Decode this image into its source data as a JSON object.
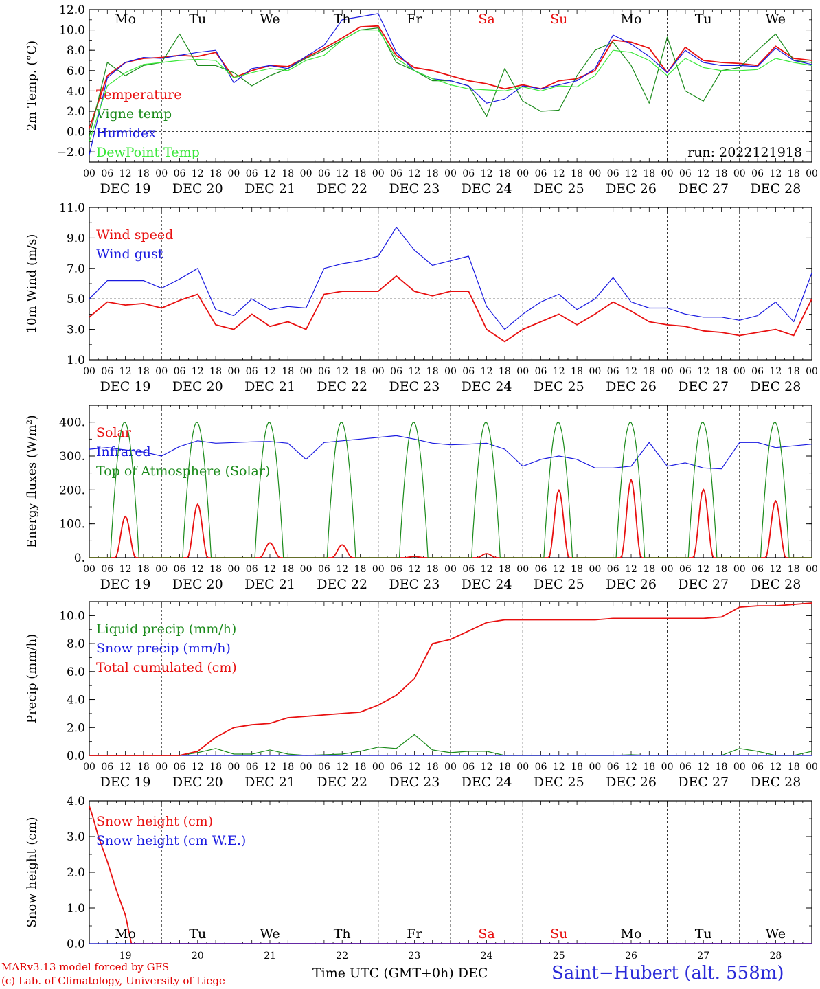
{
  "run_label": "run: 2022121918",
  "footer": {
    "credit_line1": "MARv3.13 model forced by GFS",
    "credit_line2": "(c) Lab. of Climatology, University of Liege",
    "x_axis_title": "Time UTC (GMT+0h) DEC",
    "station": "Saint−Hubert (alt. 558m)"
  },
  "days": [
    {
      "weekday": "Mo",
      "date": "DEC 19",
      "num": "19",
      "weekend": false
    },
    {
      "weekday": "Tu",
      "date": "DEC 20",
      "num": "20",
      "weekend": false
    },
    {
      "weekday": "We",
      "date": "DEC 21",
      "num": "21",
      "weekend": false
    },
    {
      "weekday": "Th",
      "date": "DEC 22",
      "num": "22",
      "weekend": false
    },
    {
      "weekday": "Fr",
      "date": "DEC 23",
      "num": "23",
      "weekend": false
    },
    {
      "weekday": "Sa",
      "date": "DEC 24",
      "num": "24",
      "weekend": true
    },
    {
      "weekday": "Su",
      "date": "DEC 25",
      "num": "25",
      "weekend": true
    },
    {
      "weekday": "Mo",
      "date": "DEC 26",
      "num": "26",
      "weekend": false
    },
    {
      "weekday": "Tu",
      "date": "DEC 27",
      "num": "27",
      "weekend": false
    },
    {
      "weekday": "We",
      "date": "DEC 28",
      "num": "28",
      "weekend": false
    }
  ],
  "hour_ticks": [
    "00",
    "06",
    "12",
    "18"
  ],
  "colors": {
    "red": "#e81010",
    "green": "#1a8a1a",
    "blue": "#1a1ae0",
    "lightgreen": "#3ae83a",
    "weekend": "#e81010"
  },
  "chart_data": [
    {
      "type": "line",
      "ylabel": "2m Temp. (°C)",
      "ylim": [
        -3,
        12
      ],
      "yticks": [
        "12.0",
        "10.0",
        "8.0",
        "6.0",
        "4.0",
        "2.0",
        "0.0",
        "−2.0"
      ],
      "ytick_values": [
        12,
        10,
        8,
        6,
        4,
        2,
        0,
        -2
      ],
      "reference_line": 0,
      "x_unit": "hours from DEC 19 00 UTC",
      "x": [
        0,
        6,
        12,
        18,
        24,
        30,
        36,
        42,
        48,
        54,
        60,
        66,
        72,
        78,
        84,
        90,
        96,
        102,
        108,
        114,
        120,
        126,
        132,
        138,
        144,
        150,
        156,
        162,
        168,
        174,
        180,
        186,
        192,
        198,
        204,
        210,
        216,
        222,
        228,
        234,
        240
      ],
      "series": [
        {
          "name": "Temperature",
          "color": "red",
          "values": [
            0.3,
            5.5,
            6.8,
            7.2,
            7.3,
            7.5,
            7.4,
            7.8,
            5.3,
            6.0,
            6.5,
            6.4,
            7.3,
            8.2,
            9.2,
            10.3,
            10.4,
            7.5,
            6.3,
            6.0,
            5.5,
            5.0,
            4.7,
            4.2,
            4.6,
            4.2,
            5.0,
            5.2,
            6.0,
            9.0,
            8.8,
            8.2,
            5.8,
            8.3,
            7.0,
            6.8,
            6.7,
            6.5,
            8.4,
            7.2,
            7.0
          ]
        },
        {
          "name": "Vigne temp",
          "color": "green",
          "values": [
            -0.5,
            6.8,
            5.5,
            6.5,
            6.8,
            9.6,
            6.5,
            6.5,
            5.8,
            4.5,
            5.5,
            6.2,
            7.2,
            8.0,
            9.0,
            10.0,
            10.2,
            6.8,
            6.0,
            5.0,
            5.0,
            4.5,
            1.5,
            6.2,
            3.0,
            2.0,
            2.1,
            5.5,
            8.0,
            8.8,
            6.5,
            2.8,
            9.3,
            4.0,
            3.0,
            6.0,
            6.3,
            8.0,
            9.6,
            7.0,
            6.8
          ]
        },
        {
          "name": "Humidex",
          "color": "blue",
          "values": [
            -2.3,
            5.3,
            6.8,
            7.3,
            7.2,
            7.5,
            7.8,
            8.0,
            4.8,
            6.2,
            6.5,
            6.2,
            7.4,
            8.5,
            11.0,
            11.3,
            11.6,
            7.8,
            6.0,
            5.2,
            5.0,
            4.5,
            2.8,
            3.2,
            4.5,
            4.2,
            4.6,
            5.0,
            6.2,
            9.5,
            8.6,
            7.4,
            5.8,
            8.0,
            6.8,
            6.5,
            6.5,
            6.4,
            8.2,
            7.0,
            6.6
          ]
        },
        {
          "name": "DewPoint Temp",
          "color": "lightgreen",
          "values": [
            -1.0,
            4.5,
            5.8,
            6.6,
            6.8,
            7.0,
            7.1,
            7.0,
            5.3,
            5.8,
            6.2,
            6.0,
            7.0,
            7.5,
            9.0,
            10.0,
            10.0,
            7.2,
            6.0,
            5.2,
            4.6,
            4.2,
            4.1,
            4.0,
            4.4,
            4.0,
            4.5,
            4.4,
            5.5,
            8.0,
            7.8,
            7.0,
            5.5,
            7.2,
            6.3,
            6.0,
            6.0,
            6.1,
            7.2,
            6.8,
            6.5
          ]
        }
      ]
    },
    {
      "type": "line",
      "ylabel": "10m Wind (m/s)",
      "ylim": [
        1,
        11
      ],
      "yticks": [
        "11.0",
        "9.0",
        "7.0",
        "5.0",
        "3.0",
        "1.0"
      ],
      "ytick_values": [
        11,
        9,
        7,
        5,
        3,
        1
      ],
      "reference_line": 5,
      "x_unit": "hours from DEC 19 00 UTC",
      "x": [
        0,
        6,
        12,
        18,
        24,
        30,
        36,
        42,
        48,
        54,
        60,
        66,
        72,
        78,
        84,
        90,
        96,
        102,
        108,
        114,
        120,
        126,
        132,
        138,
        144,
        150,
        156,
        162,
        168,
        174,
        180,
        186,
        192,
        198,
        204,
        210,
        216,
        222,
        228,
        234,
        240
      ],
      "series": [
        {
          "name": "Wind speed",
          "color": "red",
          "values": [
            3.8,
            4.8,
            4.6,
            4.7,
            4.4,
            4.9,
            5.3,
            3.3,
            3.0,
            4.0,
            3.2,
            3.5,
            3.0,
            5.3,
            5.5,
            5.5,
            5.5,
            6.5,
            5.5,
            5.2,
            5.5,
            5.5,
            3.0,
            2.2,
            3.0,
            3.5,
            4.0,
            3.3,
            4.0,
            4.8,
            4.2,
            3.5,
            3.3,
            3.2,
            2.9,
            2.8,
            2.6,
            2.8,
            3.0,
            2.6,
            5.0
          ]
        },
        {
          "name": "Wind gust",
          "color": "blue",
          "values": [
            5.0,
            6.2,
            6.2,
            6.2,
            5.7,
            6.3,
            7.0,
            4.3,
            3.9,
            5.0,
            4.3,
            4.5,
            4.4,
            7.0,
            7.3,
            7.5,
            7.8,
            9.7,
            8.2,
            7.2,
            7.5,
            7.8,
            4.5,
            3.0,
            4.0,
            4.8,
            5.3,
            4.3,
            5.0,
            6.4,
            4.8,
            4.4,
            4.4,
            4.0,
            3.8,
            3.8,
            3.6,
            3.9,
            4.8,
            3.5,
            6.7
          ]
        }
      ]
    },
    {
      "type": "line",
      "ylabel": "Energy fluxes (W/m²)",
      "ylim": [
        0,
        450
      ],
      "yticks": [
        "400.",
        "300.",
        "200.",
        "100.",
        "0."
      ],
      "ytick_values": [
        400,
        300,
        200,
        100,
        0
      ],
      "x_unit": "hours from DEC 19 00 UTC",
      "x": [
        0,
        6,
        12,
        18,
        24,
        30,
        36,
        42,
        48,
        54,
        60,
        66,
        72,
        78,
        84,
        90,
        96,
        102,
        108,
        114,
        120,
        126,
        132,
        138,
        144,
        150,
        156,
        162,
        168,
        174,
        180,
        186,
        192,
        198,
        204,
        210,
        216,
        222,
        228,
        234,
        240
      ],
      "series": [
        {
          "name": "Solar",
          "color": "red",
          "peaks": [
            122,
            158,
            44,
            38,
            4,
            12,
            200,
            230,
            202,
            168
          ],
          "values": [
            0,
            0,
            122,
            0,
            0,
            0,
            158,
            0,
            0,
            0,
            44,
            0,
            0,
            0,
            38,
            0,
            0,
            0,
            4,
            0,
            0,
            0,
            12,
            0,
            0,
            0,
            200,
            0,
            0,
            0,
            230,
            0,
            0,
            0,
            202,
            0,
            0,
            0,
            168,
            0,
            0
          ]
        },
        {
          "name": "Infrared",
          "color": "blue",
          "values": [
            320,
            325,
            318,
            312,
            300,
            328,
            345,
            338,
            340,
            342,
            343,
            338,
            290,
            340,
            345,
            350,
            355,
            360,
            350,
            338,
            333,
            335,
            338,
            320,
            270,
            290,
            300,
            290,
            265,
            265,
            270,
            340,
            270,
            280,
            265,
            262,
            340,
            340,
            325,
            330,
            335
          ]
        },
        {
          "name": "Top of Atmosphere (Solar)",
          "color": "green",
          "peaks": [
            400,
            400,
            400,
            400,
            400,
            400,
            400,
            400,
            400,
            400
          ],
          "values": [
            0,
            0,
            400,
            0,
            0,
            0,
            400,
            0,
            0,
            0,
            400,
            0,
            0,
            0,
            400,
            0,
            0,
            0,
            400,
            0,
            0,
            0,
            400,
            0,
            0,
            0,
            400,
            0,
            0,
            0,
            400,
            0,
            0,
            0,
            400,
            0,
            0,
            0,
            400,
            0,
            0
          ]
        }
      ]
    },
    {
      "type": "line",
      "ylabel": "Precip (mm/h)",
      "ylim": [
        0,
        11
      ],
      "yticks": [
        "10.0",
        "8.0",
        "6.0",
        "4.0",
        "2.0",
        "0.0"
      ],
      "ytick_values": [
        10,
        8,
        6,
        4,
        2,
        0
      ],
      "x_unit": "hours from DEC 19 00 UTC",
      "x": [
        0,
        6,
        12,
        18,
        24,
        30,
        36,
        42,
        48,
        54,
        60,
        66,
        72,
        78,
        84,
        90,
        96,
        102,
        108,
        114,
        120,
        126,
        132,
        138,
        144,
        150,
        156,
        162,
        168,
        174,
        180,
        186,
        192,
        198,
        204,
        210,
        216,
        222,
        228,
        234,
        240
      ],
      "series": [
        {
          "name": "Liquid precip (mm/h)",
          "color": "green",
          "values": [
            0,
            0,
            0,
            0,
            0,
            0,
            0.2,
            0.5,
            0.1,
            0.1,
            0.4,
            0.1,
            0,
            0.05,
            0.1,
            0.3,
            0.6,
            0.5,
            1.5,
            0.4,
            0.2,
            0.3,
            0.3,
            0,
            0,
            0,
            0,
            0,
            0,
            0,
            0.05,
            0,
            0,
            0,
            0,
            0,
            0.5,
            0.3,
            0,
            0,
            0.3
          ]
        },
        {
          "name": "Snow precip (mm/h)",
          "color": "blue",
          "values": [
            0,
            0,
            0,
            0,
            0,
            0,
            0,
            0,
            0,
            0,
            0,
            0,
            0,
            0,
            0,
            0,
            0,
            0,
            0,
            0,
            0,
            0,
            0,
            0,
            0,
            0,
            0,
            0,
            0,
            0,
            0,
            0,
            0,
            0,
            0,
            0,
            0,
            0,
            0,
            0,
            0
          ]
        },
        {
          "name": "Total cumulated (cm)",
          "color": "red",
          "values": [
            0,
            0,
            0,
            0,
            0,
            0,
            0.3,
            1.3,
            2.0,
            2.2,
            2.3,
            2.7,
            2.8,
            2.9,
            3.0,
            3.1,
            3.6,
            4.3,
            5.5,
            8.0,
            8.3,
            8.9,
            9.5,
            9.7,
            9.7,
            9.7,
            9.7,
            9.7,
            9.7,
            9.8,
            9.8,
            9.8,
            9.8,
            9.8,
            9.8,
            9.9,
            10.6,
            10.7,
            10.7,
            10.8,
            10.9
          ]
        }
      ]
    },
    {
      "type": "line",
      "ylabel": "Snow height (cm)",
      "ylim": [
        0,
        4
      ],
      "yticks": [
        "4.0",
        "3.0",
        "2.0",
        "1.0",
        "0.0"
      ],
      "ytick_values": [
        4,
        3,
        2,
        1,
        0
      ],
      "x_unit": "hours from DEC 19 00 UTC",
      "x": [
        0,
        1,
        3,
        6,
        9,
        12,
        14,
        16,
        24,
        240
      ],
      "series": [
        {
          "name": "Snow height (cm)",
          "color": "red",
          "values": [
            3.85,
            3.6,
            3.0,
            2.3,
            1.5,
            0.8,
            0.0,
            0.0,
            0.0,
            0.0
          ]
        },
        {
          "name": "Snow height (cm W.E.)",
          "color": "blue",
          "values": [
            0,
            0,
            0,
            0,
            0,
            0,
            0,
            0,
            0,
            0
          ]
        }
      ]
    }
  ]
}
